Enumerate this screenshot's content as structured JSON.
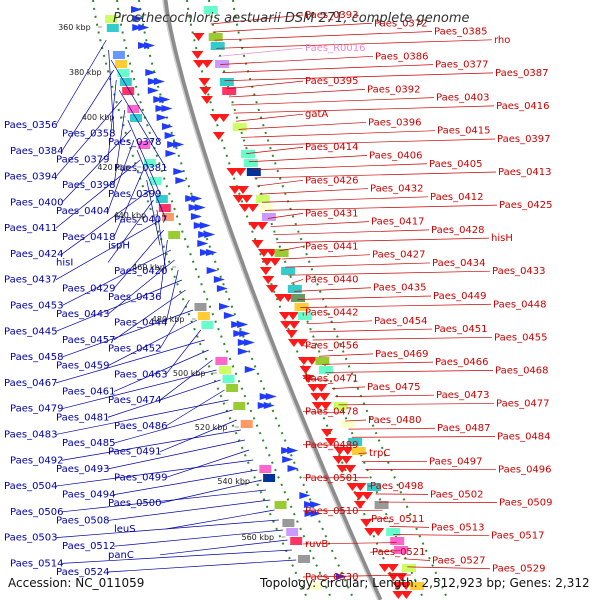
{
  "title": "Prosthecochloris aestuarii DSM 271, complete genome",
  "footer": {
    "accession": "Accession: NC_011059",
    "summary": "Topology: circular; Length: 2,512,923 bp; Genes: 2,312"
  },
  "colors": {
    "plus_strand": "#1f3bff",
    "minus_strand": "#ff1a1a",
    "backbone": "#8c8c8c",
    "grid": "#2e8b2e",
    "left_label": "#0000aa",
    "right_label": "#cc0000",
    "rna_label": "#ee88cc"
  },
  "kbp_ticks": [
    "360 kbp",
    "380 kbp",
    "400 kbp",
    "420 kbp",
    "440 kbp",
    "460 kbp",
    "480 kbp",
    "500 kbp",
    "520 kbp",
    "540 kbp",
    "560 kbp"
  ],
  "left_labels": [
    "Paes_0356",
    "Paes_0358",
    "Paes_0378",
    "Paes_0384",
    "Paes_0379",
    "Paes_0381",
    "Paes_0394",
    "Paes_0398",
    "Paes_0399",
    "Paes_0400",
    "Paes_0404",
    "Paes_0407",
    "Paes_0411",
    "Paes_0418",
    "ispH",
    "Paes_0424",
    "hisI",
    "Paes_0420",
    "Paes_0437",
    "Paes_0429",
    "Paes_0436",
    "Paes_0453",
    "Paes_0443",
    "Paes_0444",
    "Paes_0445",
    "Paes_0457",
    "Paes_0452",
    "Paes_0458",
    "Paes_0459",
    "Paes_0463",
    "Paes_0467",
    "Paes_0461",
    "Paes_0474",
    "Paes_0479",
    "Paes_0481",
    "Paes_0486",
    "Paes_0483",
    "Paes_0485",
    "Paes_0491",
    "Paes_0492",
    "Paes_0493",
    "Paes_0499",
    "Paes_0504",
    "Paes_0494",
    "Paes_0500",
    "Paes_0506",
    "Paes_0508",
    "leuS",
    "Paes_0503",
    "Paes_0512",
    "panC",
    "Paes_0514",
    "Paes_0524"
  ],
  "right_labels": [
    "Paes_0393",
    "Paes_0372",
    "Paes_0385",
    "rho",
    "Paes_R0016",
    "Paes_0386",
    "Paes_0377",
    "Paes_0387",
    "Paes_0395",
    "Paes_0392",
    "Paes_0403",
    "Paes_0416",
    "gatA",
    "Paes_0396",
    "Paes_0415",
    "Paes_0397",
    "Paes_0414",
    "Paes_0406",
    "Paes_0405",
    "Paes_0413",
    "Paes_0426",
    "Paes_0432",
    "Paes_0412",
    "Paes_0425",
    "Paes_0431",
    "Paes_0417",
    "Paes_0428",
    "hisH",
    "Paes_0441",
    "Paes_0427",
    "Paes_0434",
    "Paes_0433",
    "Paes_0440",
    "Paes_0435",
    "Paes_0449",
    "Paes_0448",
    "Paes_0442",
    "Paes_0454",
    "Paes_0451",
    "Paes_0455",
    "Paes_0456",
    "Paes_0469",
    "Paes_0466",
    "Paes_0468",
    "Paes_0471",
    "Paes_0475",
    "Paes_0473",
    "Paes_0477",
    "Paes_0478",
    "Paes_0480",
    "Paes_0487",
    "Paes_0484",
    "Paes_0489",
    "trpC",
    "Paes_0497",
    "Paes_0496",
    "Paes_0501",
    "Paes_0498",
    "Paes_0502",
    "Paes_0509",
    "Paes_0510",
    "Paes_0511",
    "Paes_0513",
    "Paes_0517",
    "ruvB",
    "Paes_0521",
    "Paes_0527",
    "Paes_0529",
    "Paes_0530"
  ]
}
